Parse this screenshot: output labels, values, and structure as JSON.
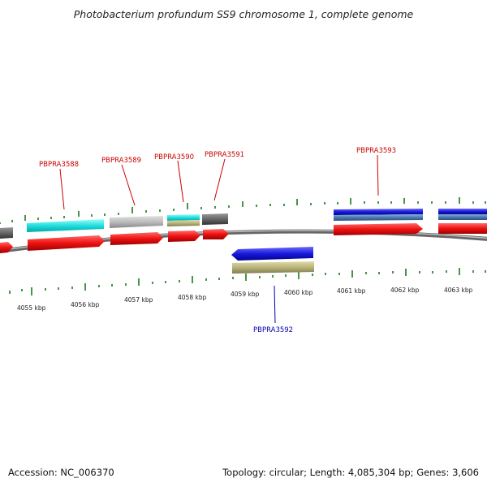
{
  "title": "Photobacterium profundum SS9 chromosome 1, complete genome",
  "footer": {
    "accession": "Accession: NC_006370",
    "summary": "Topology: circular; Length: 4,085,304 bp; Genes: 3,606"
  },
  "colors": {
    "forward_label": "#cc0000",
    "reverse_label": "#0000aa",
    "backbone": "#777777",
    "ticks": "#1a7a1a",
    "cds_red": "#ee1111",
    "cyan": "#22dddd",
    "gray": "#bbbbbb",
    "darkgray": "#666666",
    "khaki": "#b8b47a",
    "blue": "#1a1adc",
    "steelblue": "#4a7ab0"
  },
  "axis_labels": [
    "4055 kbp",
    "4056 kbp",
    "4057 kbp",
    "4058 kbp",
    "4059 kbp",
    "4060 kbp",
    "4061 kbp",
    "4062 kbp",
    "4063 kbp"
  ],
  "gene_labels": [
    {
      "name": "PBPRA3588",
      "strand": "forward"
    },
    {
      "name": "PBPRA3589",
      "strand": "forward"
    },
    {
      "name": "PBPRA3590",
      "strand": "forward"
    },
    {
      "name": "PBPRA3591",
      "strand": "forward"
    },
    {
      "name": "PBPRA3593",
      "strand": "forward"
    },
    {
      "name": "PBPRA3592",
      "strand": "reverse"
    }
  ]
}
